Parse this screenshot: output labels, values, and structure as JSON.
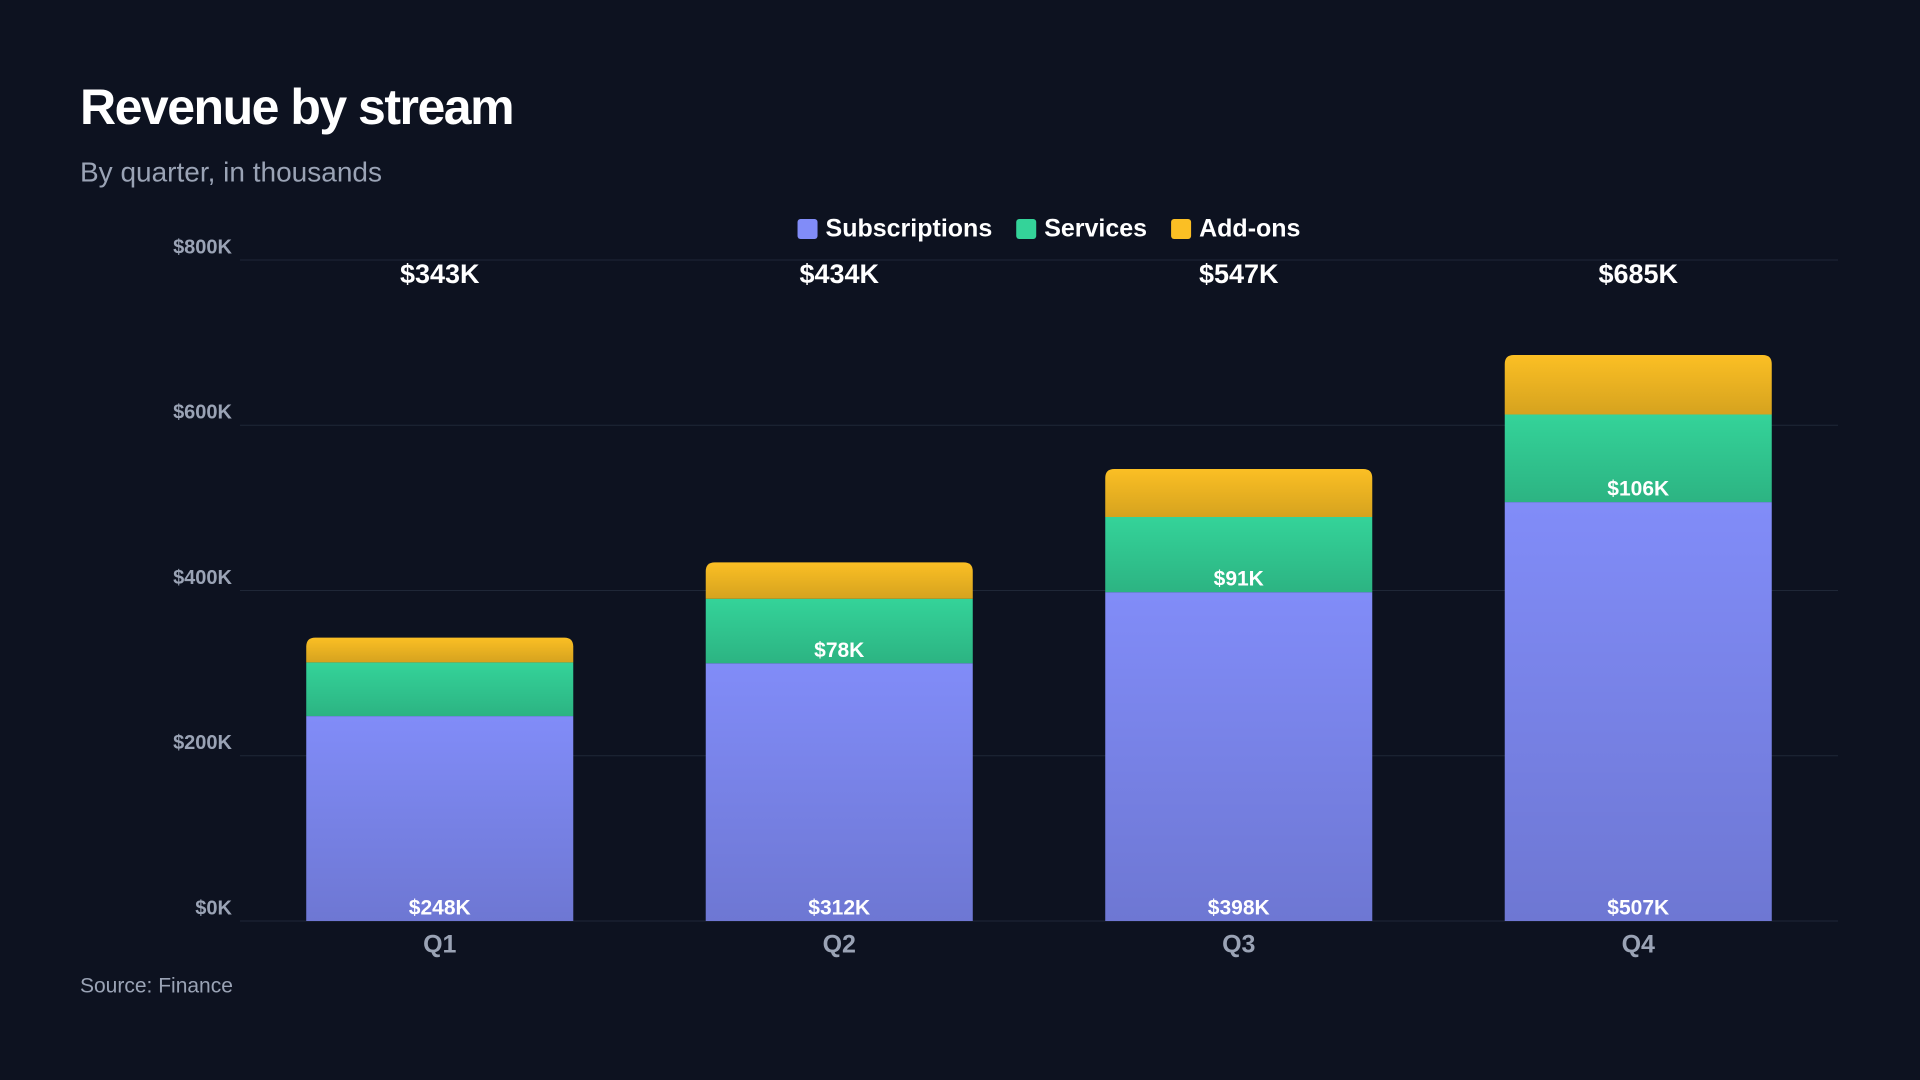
{
  "chart_data": {
    "type": "stacked-bar",
    "title": "Revenue by stream",
    "subtitle": "By quarter, in thousands",
    "source": "Source: Finance",
    "categories": [
      "Q1",
      "Q2",
      "Q3",
      "Q4"
    ],
    "series": [
      {
        "name": "Subscriptions",
        "color": "#818cf8",
        "values": [
          248,
          312,
          398,
          507
        ],
        "value_labels": [
          "$248K",
          "$312K",
          "$398K",
          "$507K"
        ]
      },
      {
        "name": "Services",
        "color": "#34d399",
        "values": [
          65,
          78,
          91,
          106
        ],
        "value_labels": [
          null,
          "$78K",
          "$91K",
          "$106K"
        ]
      },
      {
        "name": "Add-ons",
        "color": "#fbbf24",
        "values": [
          30,
          44,
          58,
          72
        ],
        "value_labels": [
          null,
          null,
          null,
          null
        ]
      }
    ],
    "totals": {
      "values": [
        343,
        434,
        547,
        685
      ],
      "labels": [
        "$343K",
        "$434K",
        "$547K",
        "$685K"
      ]
    },
    "ylim": [
      0,
      800
    ],
    "yticks": [
      {
        "value": 0,
        "label": "$0K"
      },
      {
        "value": 200,
        "label": "$200K"
      },
      {
        "value": 400,
        "label": "$400K"
      },
      {
        "value": 600,
        "label": "$600K"
      },
      {
        "value": 800,
        "label": "$800K"
      }
    ],
    "grid": true,
    "legend": "top"
  }
}
